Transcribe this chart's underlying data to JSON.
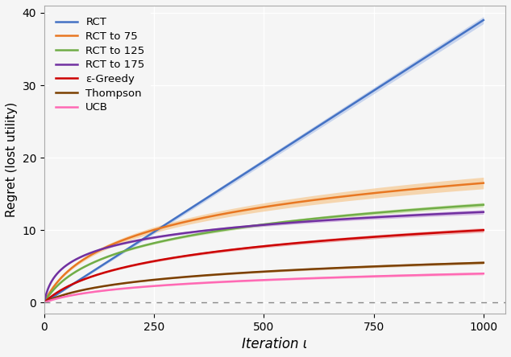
{
  "x_max": 1000,
  "x_ticks": [
    0,
    250,
    500,
    750,
    1000
  ],
  "y_ticks": [
    0,
    10,
    20,
    30,
    40
  ],
  "y_lim": [
    -1.5,
    41
  ],
  "x_lim": [
    0,
    1050
  ],
  "xlabel": "Iteration ι",
  "ylabel": "Regret (lost utility)",
  "background_color": "#f5f5f5",
  "grid_color": "#ffffff",
  "series": [
    {
      "label": "RCT",
      "color": "#4472C4",
      "band_alpha": "#aabfe8",
      "type": "linear",
      "end_val": 39.0,
      "band_half": 0.5
    },
    {
      "label": "RCT to 75",
      "color": "#E87722",
      "band_alpha": "#f5c080",
      "type": "sqrt_log",
      "end_val": 16.5,
      "log_k": 40,
      "band_half": 0.8
    },
    {
      "label": "RCT to 125",
      "color": "#70AD47",
      "band_alpha": "#b8d98a",
      "type": "sqrt_log",
      "end_val": 13.5,
      "log_k": 40,
      "band_half": 0.3
    },
    {
      "label": "RCT to 175",
      "color": "#7030A0",
      "band_alpha": "#c090d8",
      "type": "log_steep",
      "end_val": 12.5,
      "log_k": 8,
      "band_half": 0.3
    },
    {
      "label": "ε-Greedy",
      "color": "#CC0000",
      "band_alpha": "#e88080",
      "type": "sqrt_log",
      "end_val": 10.0,
      "log_k": 60,
      "band_half": 0.3
    },
    {
      "label": "Thompson",
      "color": "#7B3F00",
      "band_alpha": "#c8a070",
      "type": "sqrt_log",
      "end_val": 5.5,
      "log_k": 60,
      "band_half": 0.2
    },
    {
      "label": "UCB",
      "color": "#FF69B4",
      "band_alpha": "#ffb0d0",
      "type": "sqrt_log",
      "end_val": 4.0,
      "log_k": 60,
      "band_half": 0.2
    }
  ]
}
